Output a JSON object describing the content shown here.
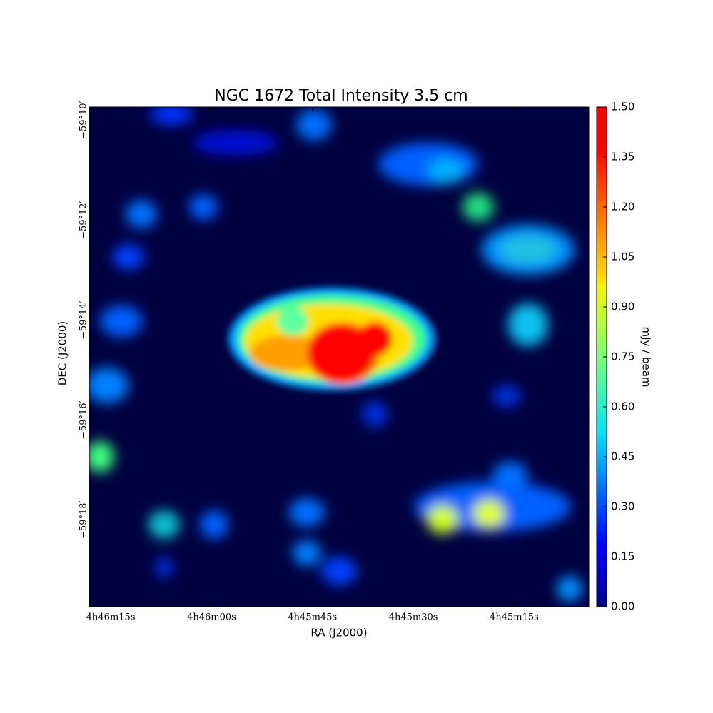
{
  "chart_data": {
    "type": "image",
    "title": "NGC 1672 Total Intensity 3.5 cm",
    "x_label": "RA (J2000)",
    "y_label": "DEC (J2000)",
    "xlim": [
      17178.2,
      17103.9
    ],
    "xticks": [
      {
        "value": 17175,
        "label": "4h46m15s"
      },
      {
        "value": 17160,
        "label": "4h46m00s"
      },
      {
        "value": 17145,
        "label": "4h45m45s"
      },
      {
        "value": 17130,
        "label": "4h45m30s"
      },
      {
        "value": 17115,
        "label": "4h45m15s"
      }
    ],
    "ylim": [
      -3559.74,
      -3549.74
    ],
    "yticks": [
      {
        "value": -3550,
        "label": "−59°10′"
      },
      {
        "value": -3552,
        "label": "−59°12′"
      },
      {
        "value": -3554,
        "label": "−59°14′"
      },
      {
        "value": -3556,
        "label": "−59°16′"
      },
      {
        "value": -3558,
        "label": "−59°18′"
      }
    ],
    "colormap": "jet",
    "colorbar_label": "mJy / beam",
    "clim": [
      0,
      1.5
    ],
    "cticks": [
      {
        "value": 0,
        "label": "0.00"
      },
      0.15,
      {
        "value": 0.3,
        "label": "0.30"
      },
      0.45,
      {
        "value": 0.6,
        "label": "0.60"
      },
      0.75,
      {
        "value": 0.9,
        "label": "0.90"
      },
      1.05,
      {
        "value": 1.2,
        "label": "1.20"
      },
      1.35,
      {
        "value": 1.5,
        "label": "1.50"
      }
    ]
  }
}
